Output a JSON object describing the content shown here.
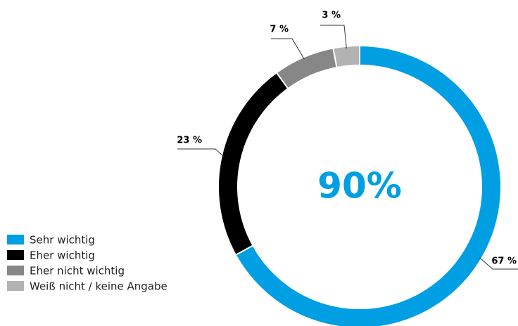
{
  "chart_data": {
    "type": "donut",
    "categories": [
      "Sehr wichtig",
      "Eher wichtig",
      "Eher nicht wichtig",
      "Weiß nicht / keine Angabe"
    ],
    "values": [
      67,
      23,
      7,
      3
    ],
    "value_labels": [
      "67 %",
      "23 %",
      "7 %",
      "3 %"
    ],
    "colors": [
      "#009fe3",
      "#000000",
      "#878787",
      "#b2b2b2"
    ],
    "center_label": "90%"
  }
}
